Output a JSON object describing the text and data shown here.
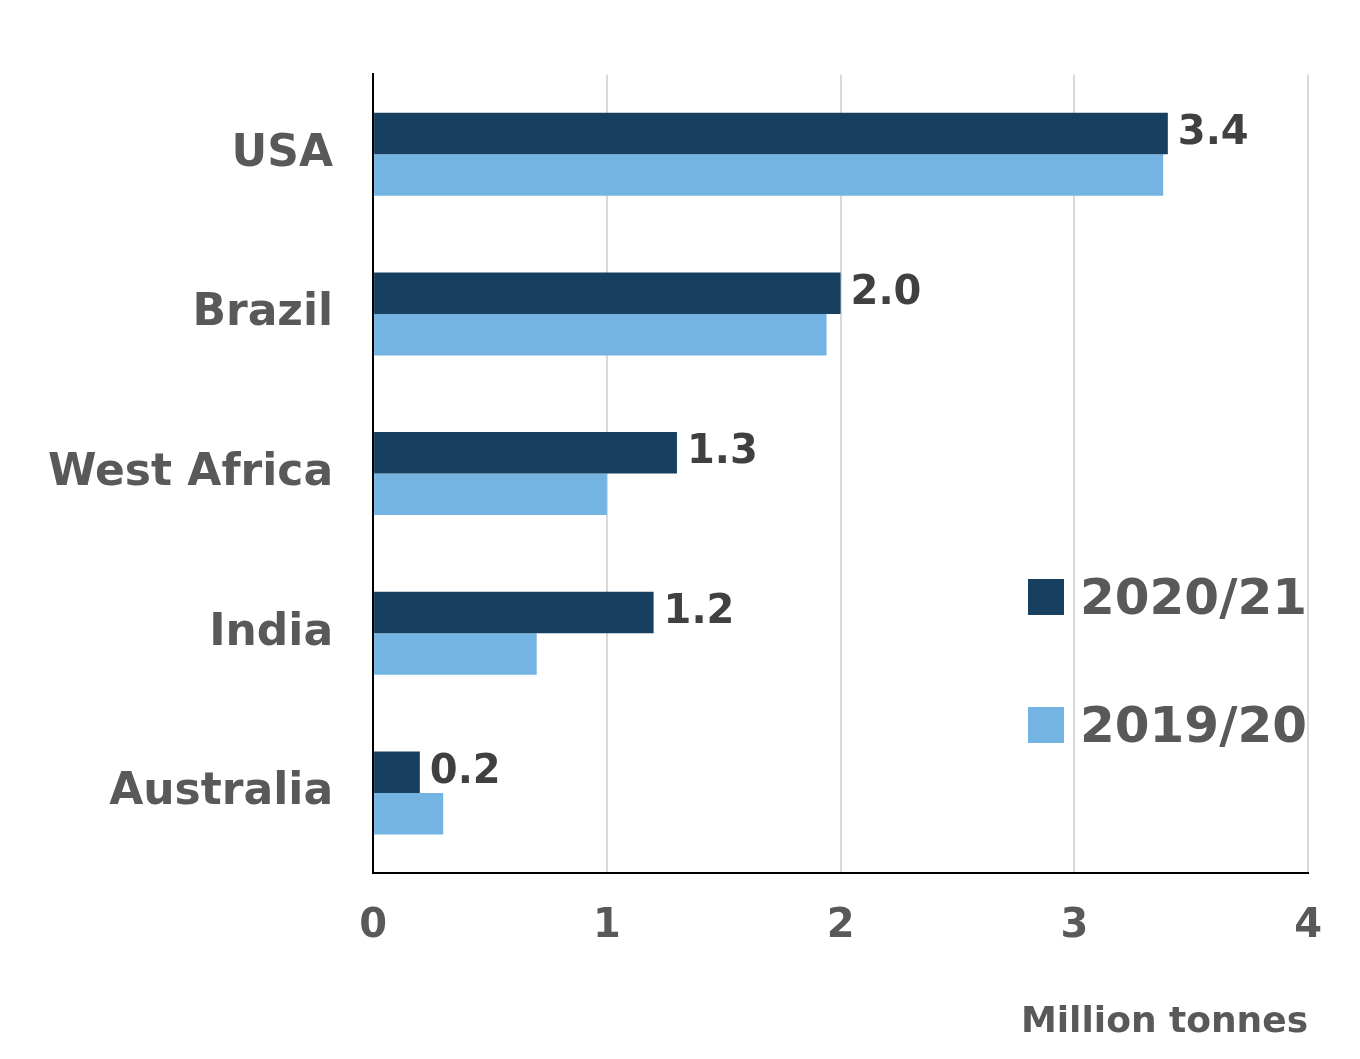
{
  "chart_data": {
    "type": "bar",
    "orientation": "horizontal",
    "categories": [
      "USA",
      "Brazil",
      "West Africa",
      "India",
      "Australia"
    ],
    "series": [
      {
        "name": "2020/21",
        "color": "#174060",
        "values": [
          3.4,
          2.0,
          1.3,
          1.2,
          0.2
        ],
        "value_labels": [
          "3.4",
          "2.0",
          "1.3",
          "1.2",
          "0.2"
        ]
      },
      {
        "name": "2019/20",
        "color": "#74b4e2",
        "values": [
          3.38,
          1.94,
          1.0,
          0.7,
          0.3
        ]
      }
    ],
    "xlabel": "Million tonnes",
    "xlim": [
      0,
      4
    ],
    "xticks": [
      0,
      1,
      2,
      3,
      4
    ],
    "grid": "x",
    "legend": "bottom right"
  }
}
